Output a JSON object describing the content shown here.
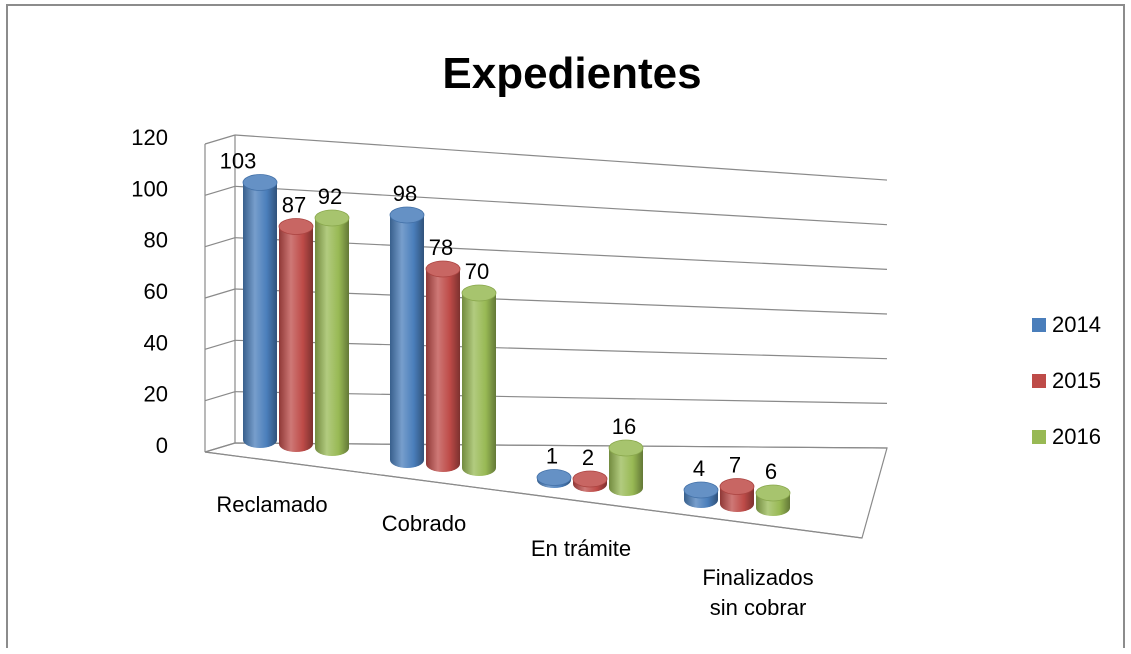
{
  "chart_data": {
    "type": "bar",
    "style": "3d-cylinder",
    "title": "Expedientes",
    "categories": [
      "Reclamado",
      "Cobrado",
      "En trámite",
      "Finalizados sin cobrar"
    ],
    "series": [
      {
        "name": "2014",
        "color": "#4a7ebb",
        "values": [
          103,
          98,
          1,
          4
        ]
      },
      {
        "name": "2015",
        "color": "#be4b48",
        "values": [
          87,
          78,
          2,
          7
        ]
      },
      {
        "name": "2016",
        "color": "#98b954",
        "values": [
          92,
          70,
          16,
          6
        ]
      }
    ],
    "yticks": [
      "0",
      "20",
      "40",
      "60",
      "80",
      "100",
      "120"
    ],
    "ylim": [
      0,
      120
    ],
    "grid": true,
    "legend_position": "right"
  }
}
